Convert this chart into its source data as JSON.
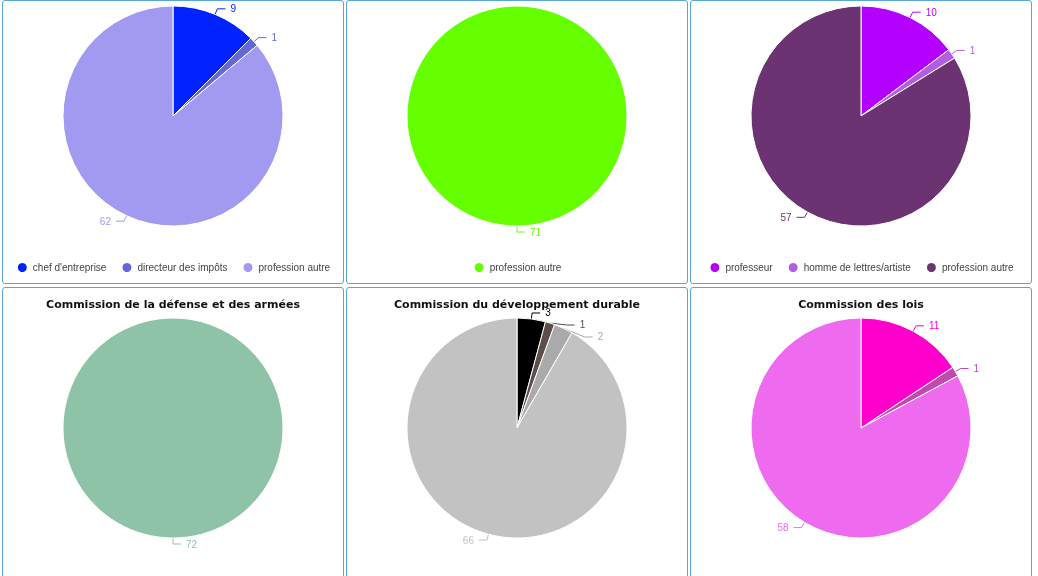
{
  "chart_data": [
    {
      "type": "pie",
      "categories": [
        "chef d'entreprise",
        "directeur des impôts",
        "profession autre"
      ],
      "values": [
        9,
        1,
        62
      ],
      "colors": [
        "#0022ff",
        "#6467dc",
        "#a29af0"
      ],
      "data_labels": true,
      "legend": "bottom"
    },
    {
      "type": "pie",
      "categories": [
        "profession autre"
      ],
      "values": [
        71
      ],
      "colors": [
        "#66ff00"
      ],
      "data_labels": true,
      "legend": "bottom"
    },
    {
      "type": "pie",
      "categories": [
        "professeur",
        "homme de lettres/artiste",
        "profession autre"
      ],
      "values": [
        10,
        1,
        57
      ],
      "colors": [
        "#b300ff",
        "#b25ee0",
        "#6b3371"
      ],
      "data_labels": true,
      "legend": "bottom"
    },
    {
      "type": "pie",
      "title": "Commission de la défense et des armées",
      "categories": [
        null
      ],
      "values": [
        72
      ],
      "colors": [
        "#8fc3a8"
      ],
      "data_labels": true
    },
    {
      "type": "pie",
      "title": "Commission du développement durable",
      "categories": [
        null,
        null,
        null,
        null
      ],
      "values": [
        3,
        1,
        2,
        66
      ],
      "colors": [
        "#000000",
        "#5d4d4d",
        "#aaaaaa",
        "#c2c2c2"
      ],
      "data_labels": true
    },
    {
      "type": "pie",
      "title": "Commission des lois",
      "categories": [
        null,
        null,
        null
      ],
      "values": [
        11,
        1,
        58
      ],
      "colors": [
        "#ff00cc",
        "#c04ab0",
        "#ee6aee"
      ],
      "data_labels": true
    }
  ]
}
